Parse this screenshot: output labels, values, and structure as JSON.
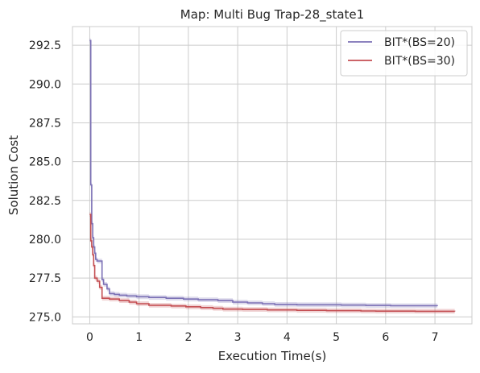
{
  "chart_data": {
    "type": "line",
    "title": "Map: Multi Bug Trap-28_state1",
    "xlabel": "Execution Time(s)",
    "ylabel": "Solution Cost",
    "xlim": [
      -0.35,
      7.75
    ],
    "ylim": [
      274.55,
      293.7
    ],
    "xticks": [
      0,
      1,
      2,
      3,
      4,
      5,
      6,
      7
    ],
    "yticks": [
      275.0,
      277.5,
      280.0,
      282.5,
      285.0,
      287.5,
      290.0,
      292.5
    ],
    "xtick_labels": [
      "0",
      "1",
      "2",
      "3",
      "4",
      "5",
      "6",
      "7"
    ],
    "ytick_labels": [
      "275.0",
      "277.5",
      "280.0",
      "282.5",
      "285.0",
      "287.5",
      "290.0",
      "292.5"
    ],
    "grid": true,
    "legend_position": "top-right",
    "series": [
      {
        "name": "BIT*(BS=20)",
        "color": "#7b70b5",
        "band": 0.15,
        "x": [
          0.0,
          0.02,
          0.04,
          0.06,
          0.08,
          0.1,
          0.12,
          0.15,
          0.25,
          0.28,
          0.35,
          0.4,
          0.5,
          0.6,
          0.75,
          0.95,
          1.2,
          1.55,
          1.9,
          2.2,
          2.6,
          2.9,
          3.2,
          3.5,
          3.75,
          4.2,
          5.1,
          5.6,
          6.1,
          7.05
        ],
        "y": [
          292.8,
          283.5,
          281.0,
          280.1,
          279.5,
          279.1,
          278.7,
          278.6,
          277.4,
          277.1,
          276.8,
          276.5,
          276.45,
          276.4,
          276.35,
          276.3,
          276.25,
          276.2,
          276.15,
          276.1,
          276.05,
          275.95,
          275.9,
          275.85,
          275.8,
          275.78,
          275.76,
          275.74,
          275.72,
          275.7
        ]
      },
      {
        "name": "BIT*(BS=30)",
        "color": "#c44e52",
        "band": 0.15,
        "x": [
          0.0,
          0.02,
          0.04,
          0.06,
          0.08,
          0.1,
          0.15,
          0.2,
          0.25,
          0.4,
          0.6,
          0.8,
          0.95,
          1.2,
          1.65,
          1.95,
          2.25,
          2.5,
          2.7,
          3.1,
          3.6,
          4.2,
          4.8,
          5.5,
          5.8,
          6.6,
          7.4
        ],
        "y": [
          281.6,
          279.9,
          279.5,
          279.0,
          278.3,
          277.5,
          277.3,
          276.9,
          276.2,
          276.15,
          276.05,
          275.95,
          275.85,
          275.75,
          275.7,
          275.65,
          275.6,
          275.55,
          275.5,
          275.48,
          275.45,
          275.42,
          275.4,
          275.38,
          275.37,
          275.36,
          275.35
        ]
      }
    ]
  }
}
